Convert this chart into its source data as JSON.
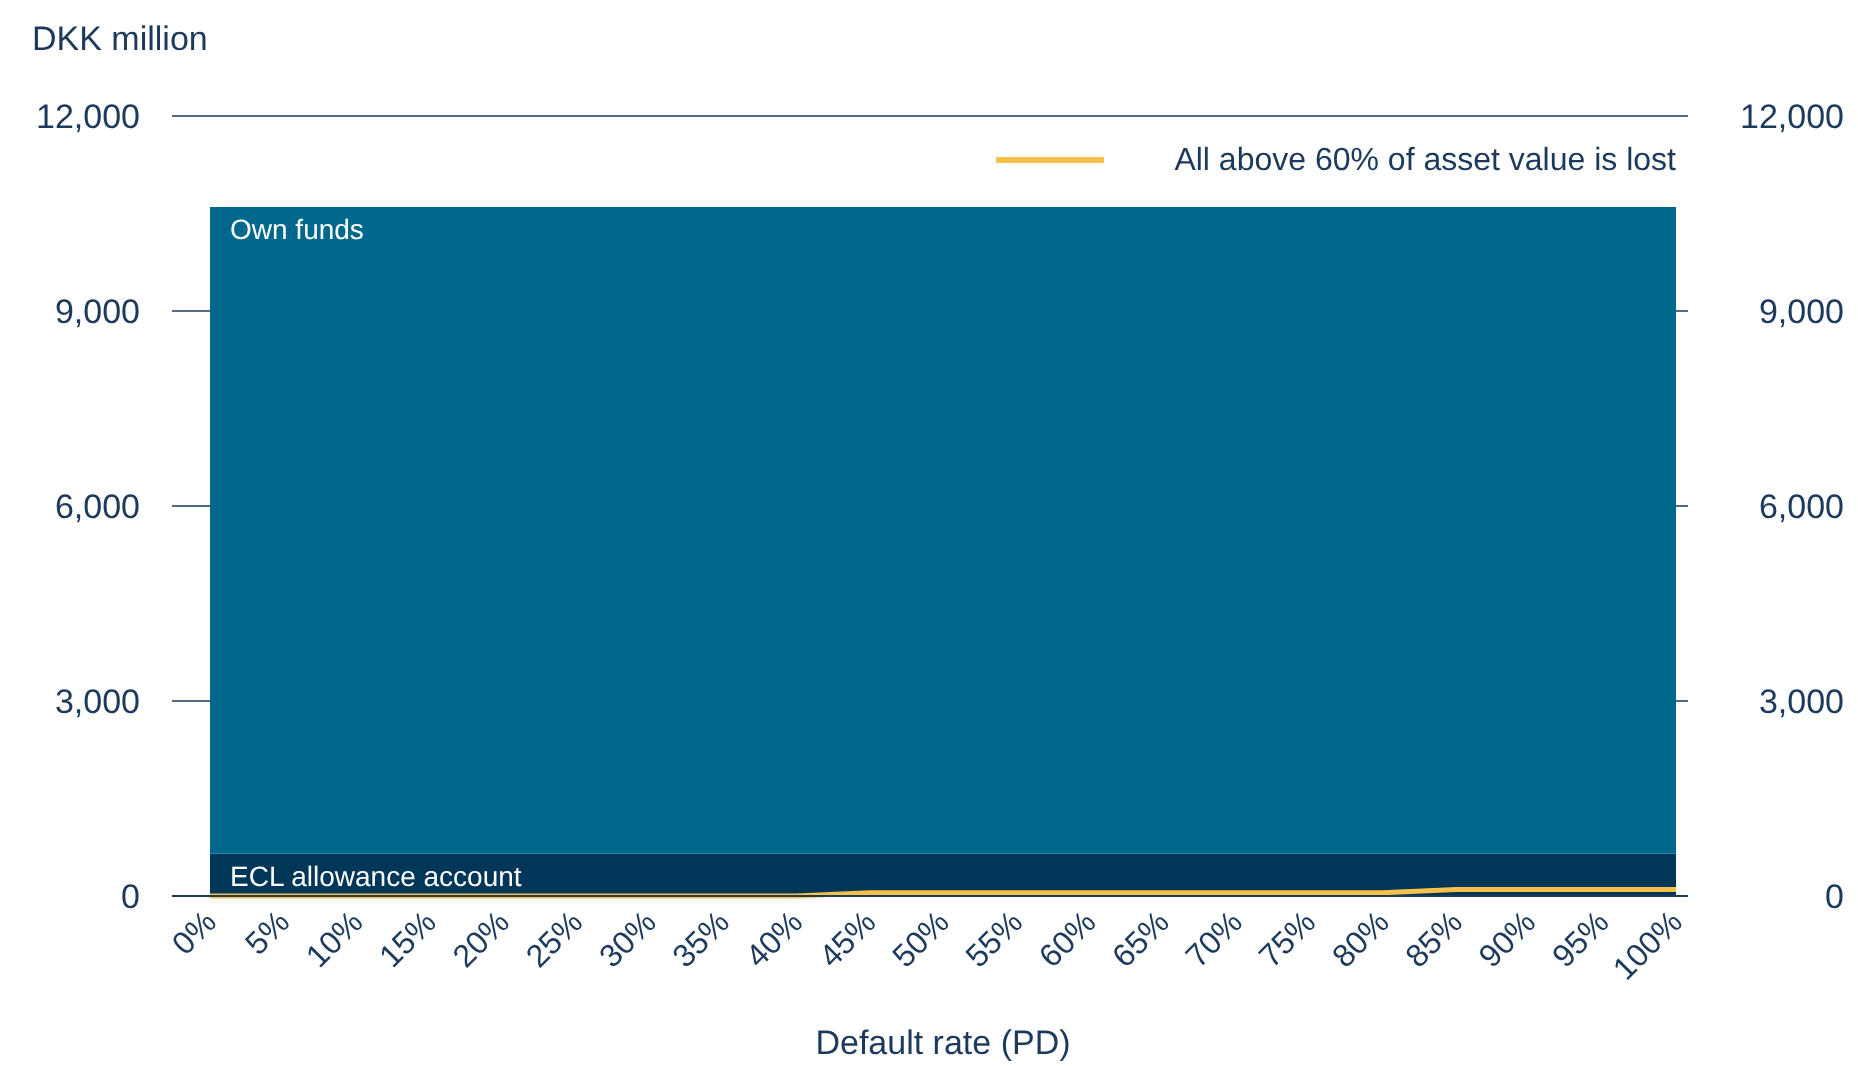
{
  "chart_data": {
    "type": "area",
    "stacked": true,
    "xlabel": "Default rate (PD)",
    "ylabel": "DKK million",
    "categories": [
      "0%",
      "5%",
      "10%",
      "15%",
      "20%",
      "25%",
      "30%",
      "35%",
      "40%",
      "45%",
      "50%",
      "55%",
      "60%",
      "65%",
      "70%",
      "75%",
      "80%",
      "85%",
      "90%",
      "95%",
      "100%"
    ],
    "series": [
      {
        "name": "ECL allowance account",
        "color": "#003658",
        "values": [
          650,
          650,
          650,
          650,
          650,
          650,
          650,
          650,
          650,
          650,
          650,
          650,
          650,
          650,
          650,
          650,
          650,
          650,
          650,
          650,
          650
        ]
      },
      {
        "name": "Own funds",
        "color": "#00688c",
        "values": [
          9950,
          9950,
          9950,
          9950,
          9950,
          9950,
          9950,
          9950,
          9950,
          9950,
          9950,
          9950,
          9950,
          9950,
          9950,
          9950,
          9950,
          9950,
          9950,
          9950,
          9950
        ]
      },
      {
        "name": "All above 60% of asset value is lost",
        "type": "line",
        "color": "#f7c14a",
        "values": [
          0,
          0,
          0,
          0,
          0,
          0,
          0,
          0,
          0,
          50,
          50,
          50,
          50,
          50,
          50,
          50,
          50,
          100,
          100,
          100,
          100
        ]
      }
    ],
    "ylim": [
      0,
      12000
    ],
    "yticks": [
      {
        "value": 0,
        "label": "0"
      },
      {
        "value": 3000,
        "label": "3,000"
      },
      {
        "value": 6000,
        "label": "6,000"
      },
      {
        "value": 9000,
        "label": "9,000"
      },
      {
        "value": 12000,
        "label": "12,000"
      }
    ],
    "y2lim": [
      0,
      12000
    ],
    "y2ticks": [
      {
        "value": 0,
        "label": "0"
      },
      {
        "value": 3000,
        "label": "3,000"
      },
      {
        "value": 6000,
        "label": "6,000"
      },
      {
        "value": 9000,
        "label": "9,000"
      },
      {
        "value": 12000,
        "label": "12,000"
      }
    ],
    "grid": "y",
    "legend": "top right"
  }
}
